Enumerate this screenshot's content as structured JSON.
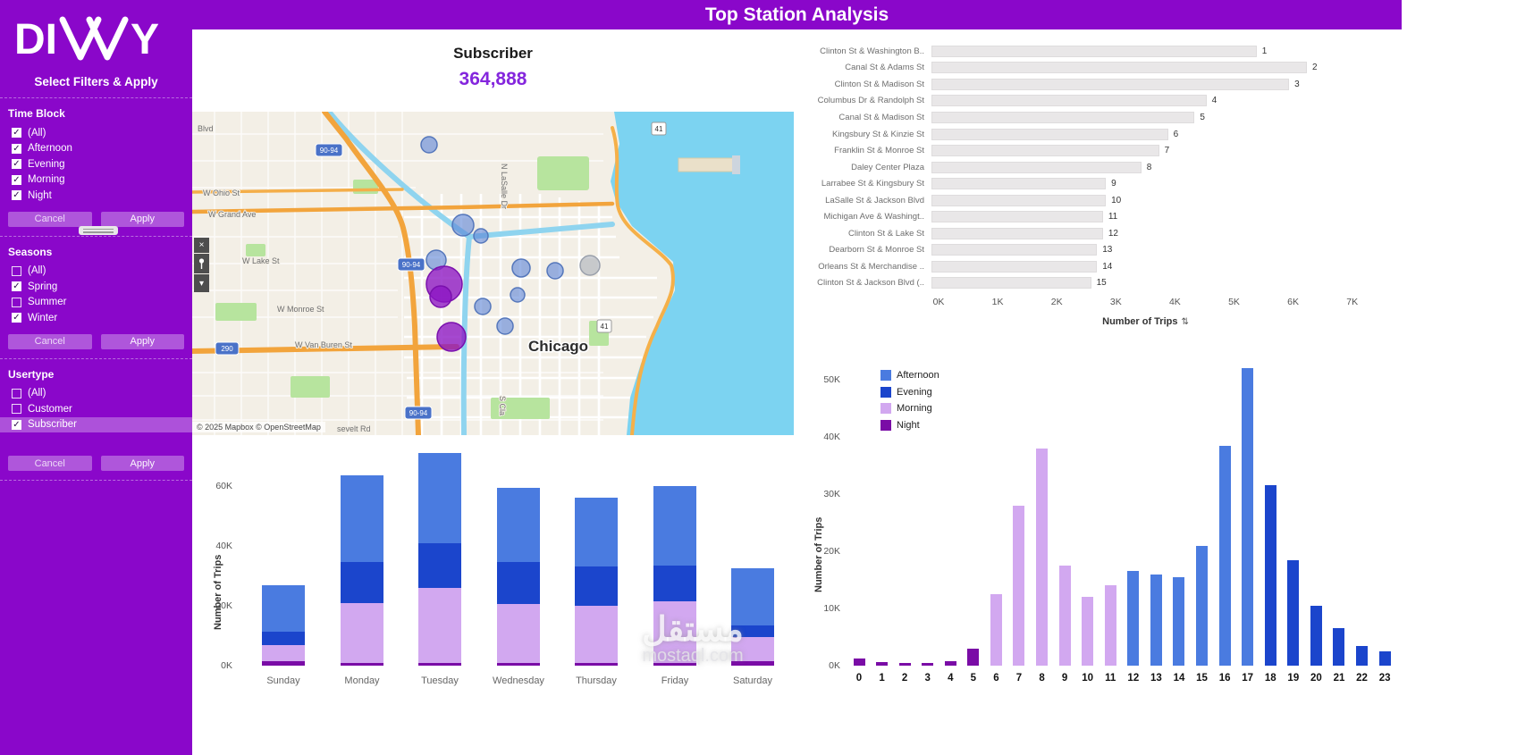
{
  "colors": {
    "purple": "#8A07CA",
    "kpi_value": "#8426DD",
    "afternoon": "#4A7BE0",
    "evening": "#1B45CC",
    "morning": "#D2A8F0",
    "night": "#7A0CA6",
    "bar_gray": "#E9E7E8",
    "bubble_blue": "rgba(96,134,214,0.62)",
    "bubble_blue_stroke": "#5577BB",
    "bubble_gray": "rgba(170,175,185,0.6)",
    "bubble_gray_stroke": "#9AA0AB",
    "bubble_purple": "rgba(140,20,195,0.78)",
    "bubble_purple_stroke": "#7A10AD"
  },
  "header": {
    "title": "Top Station Analysis"
  },
  "logo": {
    "brand": "DIVVY",
    "left": "DI",
    "right": "Y"
  },
  "sidebar": {
    "title": "Select Filters & Apply",
    "cancel_label": "Cancel",
    "apply_label": "Apply",
    "toolbar": {
      "close_icon": "×",
      "caret_icon": "▾"
    },
    "filters": [
      {
        "name": "Time Block",
        "options": [
          {
            "label": "(All)",
            "checked": true
          },
          {
            "label": "Afternoon",
            "checked": true
          },
          {
            "label": "Evening",
            "checked": true
          },
          {
            "label": "Morning",
            "checked": true
          },
          {
            "label": "Night",
            "checked": true
          }
        ]
      },
      {
        "name": "Seasons",
        "options": [
          {
            "label": "(All)",
            "checked": false
          },
          {
            "label": "Spring",
            "checked": true
          },
          {
            "label": "Summer",
            "checked": false
          },
          {
            "label": "Winter",
            "checked": true
          }
        ]
      },
      {
        "name": "Usertype",
        "options": [
          {
            "label": "(All)",
            "checked": false
          },
          {
            "label": "Customer",
            "checked": false
          },
          {
            "label": "Subscriber",
            "checked": true,
            "highlighted": true
          }
        ]
      }
    ]
  },
  "kpi": {
    "label": "Subscriber",
    "value": "364,888"
  },
  "map": {
    "city": "Chicago",
    "attribution": "© 2025 Mapbox © OpenStreetMap",
    "streets": [
      "Blvd",
      "W Ohio St",
      "W Grand Ave",
      "W Lake St",
      "W Monroe St",
      "W Van Buren St",
      "N LaSalle Dr",
      "S Cla",
      "sevelt Rd"
    ],
    "shields": [
      "90-94",
      "90-94",
      "90-94",
      "290",
      "41",
      "41"
    ],
    "bubbles": [
      {
        "x": 265,
        "y": 37,
        "r": 9,
        "c": "blue"
      },
      {
        "x": 303,
        "y": 127,
        "r": 12,
        "c": "blue"
      },
      {
        "x": 323,
        "y": 139,
        "r": 8,
        "c": "blue"
      },
      {
        "x": 273,
        "y": 166,
        "r": 11,
        "c": "blue"
      },
      {
        "x": 368,
        "y": 175,
        "r": 10,
        "c": "blue"
      },
      {
        "x": 406,
        "y": 178,
        "r": 9,
        "c": "blue"
      },
      {
        "x": 445,
        "y": 172,
        "r": 11,
        "c": "gray"
      },
      {
        "x": 364,
        "y": 205,
        "r": 8,
        "c": "blue"
      },
      {
        "x": 325,
        "y": 218,
        "r": 9,
        "c": "blue"
      },
      {
        "x": 350,
        "y": 240,
        "r": 9,
        "c": "blue"
      },
      {
        "x": 282,
        "y": 193,
        "r": 20,
        "c": "purple"
      },
      {
        "x": 278,
        "y": 207,
        "r": 12,
        "c": "purple"
      },
      {
        "x": 290,
        "y": 252,
        "r": 16,
        "c": "purple"
      }
    ]
  },
  "chart_data": [
    {
      "type": "bar",
      "orientation": "horizontal",
      "categories": [
        "Clinton St & Washington B..",
        "Canal St & Adams St",
        "Clinton St & Madison St",
        "Columbus Dr & Randolph St",
        "Canal St & Madison St",
        "Kingsbury St & Kinzie St",
        "Franklin St & Monroe St",
        "Daley Center Plaza",
        "Larrabee St & Kingsbury St",
        "LaSalle St & Jackson Blvd",
        "Michigan Ave & Washingt..",
        "Clinton St & Lake St",
        "Dearborn St & Monroe St",
        "Orleans St & Merchandise ..",
        "Clinton St & Jackson Blvd (.."
      ],
      "values_k": [
        5.5,
        6.35,
        6.05,
        4.65,
        4.45,
        4.0,
        3.85,
        3.55,
        2.95,
        2.95,
        2.9,
        2.9,
        2.8,
        2.8,
        2.7
      ],
      "rank_labels": [
        "1",
        "2",
        "3",
        "4",
        "5",
        "6",
        "7",
        "8",
        "9",
        "10",
        "11",
        "12",
        "13",
        "14",
        "15"
      ],
      "xticks": [
        "0K",
        "1K",
        "2K",
        "3K",
        "4K",
        "5K",
        "6K",
        "7K"
      ],
      "xlim_k": [
        0,
        7
      ],
      "xlabel": "Number of Trips",
      "grid": false
    },
    {
      "type": "bar",
      "stacked": true,
      "categories": [
        "Sunday",
        "Monday",
        "Tuesday",
        "Wednesday",
        "Thursday",
        "Friday",
        "Saturday"
      ],
      "series": [
        {
          "name": "Night",
          "color_key": "night",
          "values_k": [
            1.5,
            1,
            1,
            1,
            1,
            1,
            1.5
          ]
        },
        {
          "name": "Morning",
          "color_key": "morning",
          "values_k": [
            5.5,
            20,
            25,
            19.5,
            19,
            20.5,
            8
          ]
        },
        {
          "name": "Evening",
          "color_key": "evening",
          "values_k": [
            4.5,
            13.5,
            15,
            14,
            13,
            12,
            4
          ]
        },
        {
          "name": "Afternoon",
          "color_key": "afternoon",
          "values_k": [
            15.5,
            29,
            30,
            25,
            23,
            26.5,
            19
          ]
        }
      ],
      "ylabel": "Number of Trips",
      "ytick_labels": [
        "0K",
        "20K",
        "40K",
        "60K"
      ],
      "ytick_step_k": 20,
      "ylim_k": [
        0,
        72
      ],
      "grid": false
    },
    {
      "type": "bar",
      "categories": [
        "0",
        "1",
        "2",
        "3",
        "4",
        "5",
        "6",
        "7",
        "8",
        "9",
        "10",
        "11",
        "12",
        "13",
        "14",
        "15",
        "16",
        "17",
        "18",
        "19",
        "20",
        "21",
        "22",
        "23"
      ],
      "values_k": [
        1.2,
        0.6,
        0.5,
        0.5,
        0.8,
        3,
        12.5,
        28,
        38,
        17.5,
        12,
        14,
        16.5,
        16,
        15.5,
        21,
        38.5,
        52,
        31.5,
        18.5,
        10.5,
        6.5,
        3.5,
        2.5
      ],
      "block": [
        "Night",
        "Night",
        "Night",
        "Night",
        "Night",
        "Night",
        "Morning",
        "Morning",
        "Morning",
        "Morning",
        "Morning",
        "Morning",
        "Afternoon",
        "Afternoon",
        "Afternoon",
        "Afternoon",
        "Afternoon",
        "Afternoon",
        "Evening",
        "Evening",
        "Evening",
        "Evening",
        "Evening",
        "Evening"
      ],
      "legend": [
        {
          "label": "Afternoon",
          "color_key": "afternoon"
        },
        {
          "label": "Evening",
          "color_key": "evening"
        },
        {
          "label": "Morning",
          "color_key": "morning"
        },
        {
          "label": "Night",
          "color_key": "night"
        }
      ],
      "legend_position": "top-left",
      "ylabel": "Number of Trips",
      "ytick_labels": [
        "0K",
        "10K",
        "20K",
        "30K",
        "40K",
        "50K"
      ],
      "ytick_step_k": 10,
      "ylim_k": [
        0,
        55
      ],
      "grid": false
    }
  ],
  "icons": {
    "sort": "⇅"
  },
  "watermark": {
    "arabic": "مستقل",
    "latin": "mostaql.com"
  }
}
